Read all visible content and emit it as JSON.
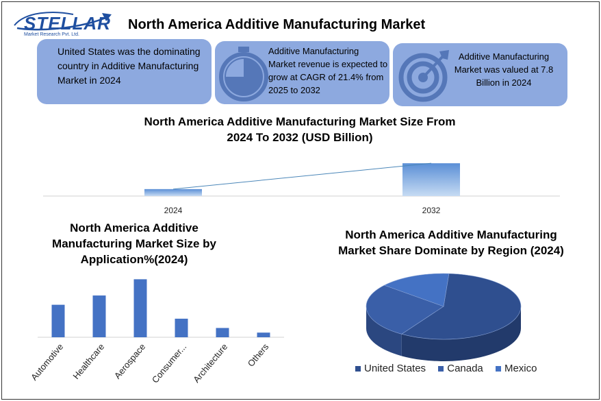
{
  "logo": {
    "word": "STELLAR",
    "sub": "Market Research Pvt. Ltd."
  },
  "title": "North America Additive Manufacturing Market",
  "cards": [
    {
      "text": "United States was the dominating country in Additive Manufacturing Market in 2024",
      "icon": "globe-icon"
    },
    {
      "text": "Additive Manufacturing Market revenue is expected to grow at CAGR of 21.4% from 2025 to 2032",
      "icon": "stopwatch-icon"
    },
    {
      "text": "Additive Manufacturing Market was valued at 7.8 Billion in 2024",
      "icon": "target-icon"
    }
  ],
  "colors": {
    "card": "#8da9df",
    "bar": "#4472c4",
    "pie_us": "#2f4f8f",
    "pie_canada": "#3a5fa8",
    "pie_mexico": "#4472c4"
  },
  "chart_data": [
    {
      "type": "bar",
      "title": "North America Additive Manufacturing Market Size From 2024 To 2032 (USD Billion)",
      "categories": [
        "2024",
        "2032"
      ],
      "values": [
        7.8,
        36.8
      ],
      "ylim": [
        0,
        40
      ],
      "trendline": true,
      "grid": false
    },
    {
      "type": "bar",
      "title": "North America Additive Manufacturing Market Size by Application%(2024)",
      "categories": [
        "Automotive",
        "Healthcare",
        "Aerospace",
        "Consumer...",
        "Architecture",
        "Others"
      ],
      "values": [
        28,
        36,
        50,
        16,
        8,
        4
      ],
      "ylim": [
        0,
        52
      ],
      "grid": false
    },
    {
      "type": "pie",
      "title": "North America Additive Manufacturing Market Share Dominate by Region (2024)",
      "categories": [
        "United States",
        "Canada",
        "Mexico"
      ],
      "values": [
        58,
        27,
        15
      ],
      "legend": "bottom",
      "style": "3d"
    }
  ]
}
